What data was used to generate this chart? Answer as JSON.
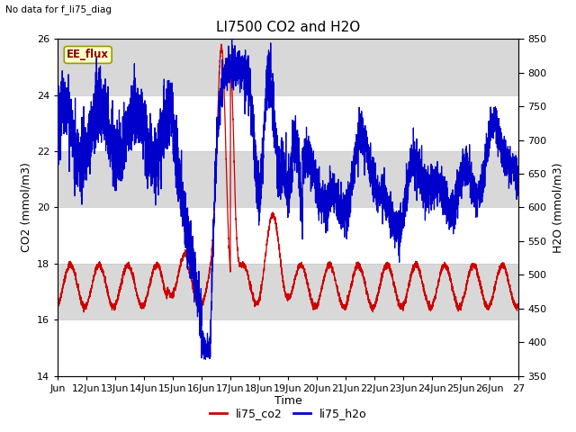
{
  "title": "LI7500 CO2 and H2O",
  "top_left_text": "No data for f_li75_diag",
  "xlabel": "Time",
  "ylabel_left": "CO2 (mmol/m3)",
  "ylabel_right": "H2O (mmol/m3)",
  "ylim_left": [
    14,
    26
  ],
  "ylim_right": [
    350,
    850
  ],
  "yticks_left": [
    14,
    16,
    18,
    20,
    22,
    24,
    26
  ],
  "yticks_right": [
    350,
    400,
    450,
    500,
    550,
    600,
    650,
    700,
    750,
    800,
    850
  ],
  "xtick_labels": [
    "Jun",
    "12Jun",
    "13Jun",
    "14Jun",
    "15Jun",
    "16Jun",
    "17Jun",
    "18Jun",
    "19Jun",
    "20Jun",
    "21Jun",
    "22Jun",
    "23Jun",
    "24Jun",
    "25Jun",
    "26Jun",
    "27"
  ],
  "legend_labels": [
    "li75_co2",
    "li75_h2o"
  ],
  "legend_colors": [
    "#cc0000",
    "#0000cc"
  ],
  "color_co2": "#cc0000",
  "color_h2o": "#0000cc",
  "grid_color": "#cccccc",
  "bg_color_dark": "#d8d8d8",
  "bg_color_light": "#ebebeb",
  "annotation_box_text": "EE_flux",
  "annotation_box_facecolor": "#ffffcc",
  "annotation_box_edgecolor": "#999900",
  "annotation_box_textcolor": "#880000",
  "figsize": [
    6.4,
    4.8
  ],
  "dpi": 100
}
